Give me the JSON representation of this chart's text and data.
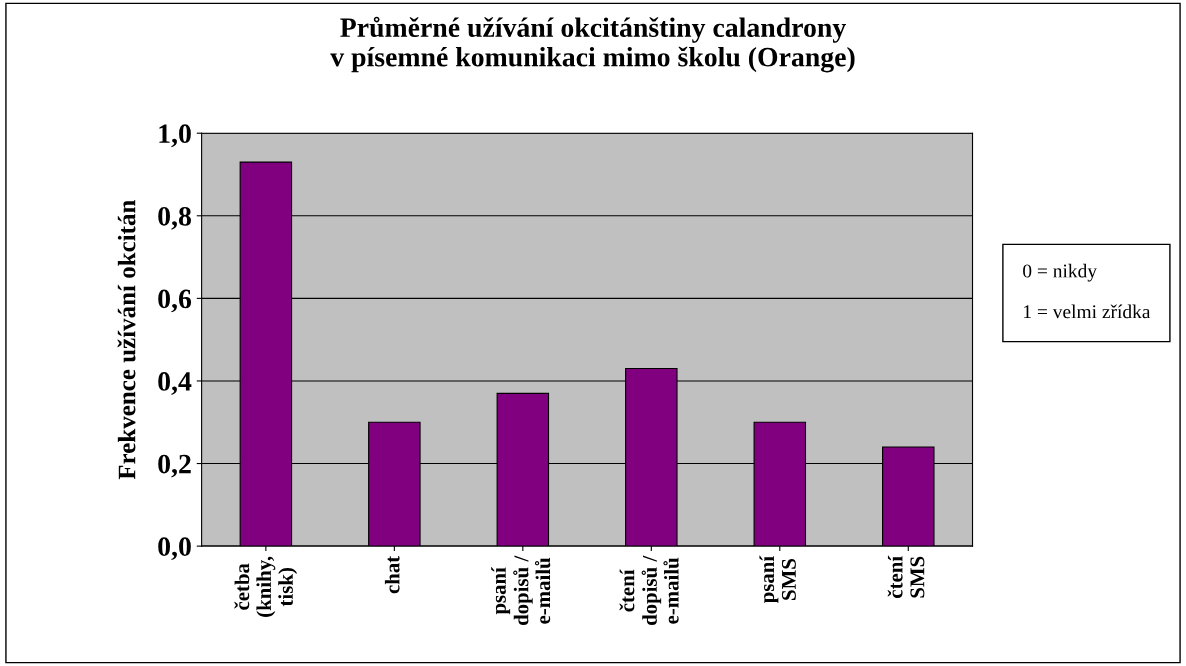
{
  "chart_data": {
    "type": "bar",
    "title": "Průměrné užívání okcitánštiny calandrony\nv písemné komunikaci mimo školu (Orange)",
    "ylabel": "Frekvence užívání okcitán",
    "categories": [
      "četba\n(knihy,\ntisk)",
      "chat",
      "psaní\ndopisů /\ne-mailů",
      "čtení\ndopisů /\ne-mailů",
      "psaní\nSMS",
      "čtení\nSMS"
    ],
    "values": [
      0.93,
      0.3,
      0.37,
      0.43,
      0.3,
      0.24
    ],
    "color": "#800080",
    "ylim": [
      0,
      1
    ],
    "yticks": [
      {
        "value": 0,
        "label": "0,0"
      },
      {
        "value": 0.2,
        "label": "0,2"
      },
      {
        "value": 0.4,
        "label": "0,4"
      },
      {
        "value": 0.6,
        "label": "0,6"
      },
      {
        "value": 0.8,
        "label": "0,8"
      },
      {
        "value": 1,
        "label": "1,0"
      }
    ],
    "grid": "y",
    "annotations": [
      "0 = nikdy",
      "1 = velmi zřídka"
    ]
  }
}
